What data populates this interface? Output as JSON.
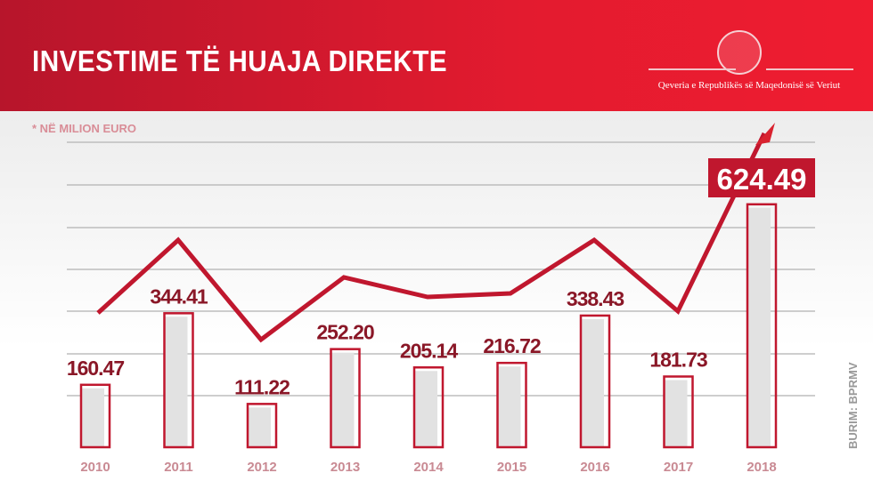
{
  "header": {
    "title": "INVESTIME TË HUAJA DIREKTE",
    "government": "Qeveria e Republikës së Maqedonisë së Veriut"
  },
  "unit_note": "* NË MILION EURO",
  "source": "BURIM: BPRMV",
  "colors": {
    "accent": "#c0172e",
    "header": "#e31b2f",
    "bar_fill": "#e2e2e2",
    "year_label": "#c98a93"
  },
  "chart_data": {
    "type": "bar",
    "title": "INVESTIME TË HUAJA DIREKTE",
    "ylabel": "* NË MILION EURO",
    "categories": [
      "2010",
      "2011",
      "2012",
      "2013",
      "2014",
      "2015",
      "2016",
      "2017",
      "2018"
    ],
    "values": [
      160.47,
      344.41,
      111.22,
      252.2,
      205.14,
      216.72,
      338.43,
      181.73,
      624.49
    ],
    "labels": [
      "160.47",
      "344.41",
      "111.22",
      "252.20",
      "205.14",
      "216.72",
      "338.43",
      "181.73",
      "624.49"
    ],
    "highlight": "2018",
    "grid": true,
    "trend_arrow": true
  }
}
